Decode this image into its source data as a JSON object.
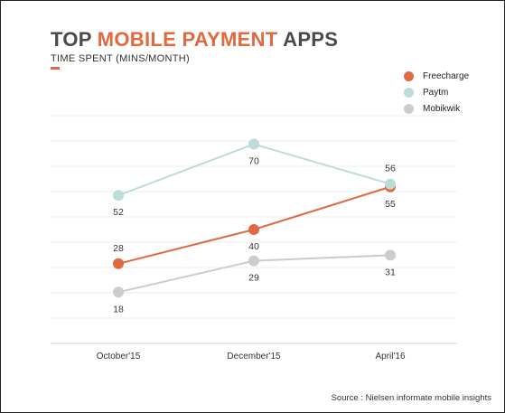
{
  "title_parts": {
    "part1": "TOP ",
    "highlight": "MOBILE PAYMENT",
    "part2": " APPS"
  },
  "subtitle": "TIME SPENT (MINS/MONTH)",
  "source": "Source : Nielsen informate mobile insights",
  "colors": {
    "accent": "#e0693f",
    "text": "#4a4a4a"
  },
  "chart_data": {
    "type": "line",
    "title": "TOP MOBILE PAYMENT APPS",
    "subtitle": "TIME SPENT (MINS/MONTH)",
    "categories": [
      "October'15",
      "December'15",
      "April'16"
    ],
    "ylim": [
      0,
      80
    ],
    "grid": true,
    "legend_position": "top-right",
    "series": [
      {
        "name": "Freecharge",
        "color": "#e0693f",
        "values": [
          28,
          40,
          55
        ]
      },
      {
        "name": "Paytm",
        "color": "#bcdcdc",
        "values": [
          52,
          70,
          56
        ]
      },
      {
        "name": "Mobikwik",
        "color": "#cccccc",
        "values": [
          18,
          29,
          31
        ]
      }
    ]
  }
}
